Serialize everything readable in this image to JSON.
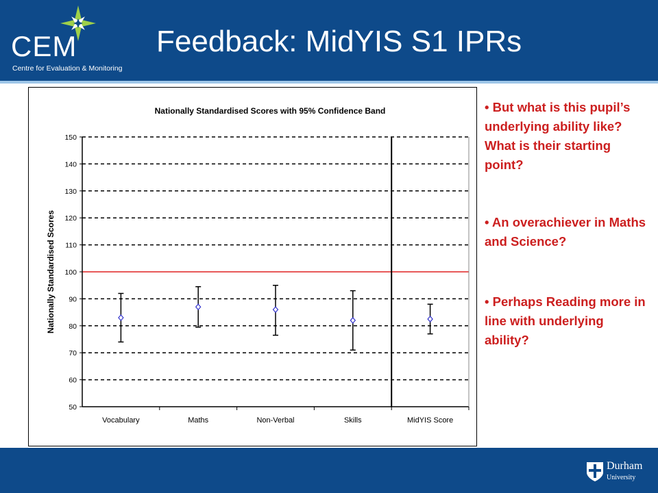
{
  "header": {
    "title": "Feedback: MidYIS S1 IPRs",
    "logo_text": "CEM",
    "logo_subtitle": "Centre for Evaluation & Monitoring",
    "background": "#0e4a8a"
  },
  "footer": {
    "university_name": "Durham",
    "university_sub": "University"
  },
  "bullets": [
    "• But what is this pupil’s underlying ability like? What is their starting point?",
    "• An overachiever in Maths and Science?",
    "• Perhaps Reading more in line with underlying ability?"
  ],
  "chart_data": {
    "type": "scatter",
    "title": "Nationally Standardised Scores with 95% Confidence Band",
    "xlabel": "",
    "ylabel": "Nationally Standardised Scores",
    "categories": [
      "Vocabulary",
      "Maths",
      "Non-Verbal",
      "Skills",
      "MidYIS Score"
    ],
    "values": [
      83,
      87,
      86,
      82,
      82.5
    ],
    "lower": [
      74,
      79.5,
      76.5,
      71,
      77
    ],
    "upper": [
      92,
      94.5,
      95,
      93,
      88
    ],
    "ylim": [
      50,
      150
    ],
    "yticks": [
      "50",
      "60",
      "70",
      "80",
      "90",
      "100",
      "110",
      "120",
      "130",
      "140",
      "150"
    ],
    "reference_line": 100,
    "reference_color": "#e02020",
    "marker_color": "#3333cc",
    "grid": "dashed horizontal"
  }
}
